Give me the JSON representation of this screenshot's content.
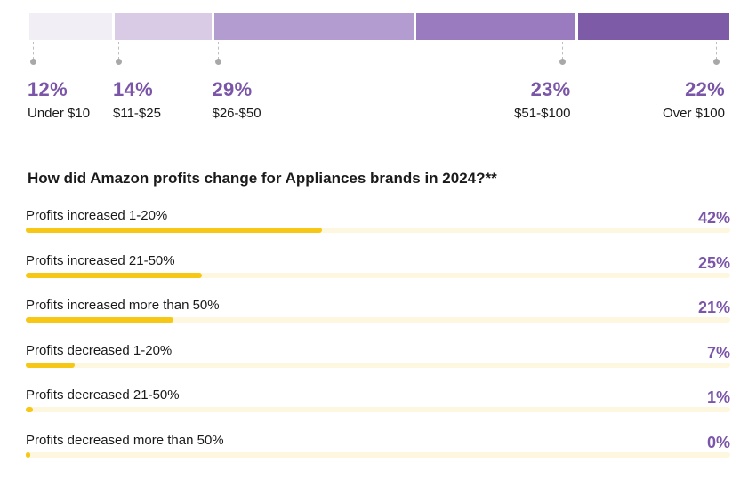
{
  "chart_data": [
    {
      "type": "bar",
      "orientation": "stacked-horizontal",
      "title": "",
      "categories": [
        "Under $10",
        "$11-$25",
        "$26-$50",
        "$51-$100",
        "Over $100"
      ],
      "values": [
        12,
        14,
        29,
        23,
        22
      ],
      "value_labels": [
        "12%",
        "14%",
        "29%",
        "23%",
        "22%"
      ],
      "colors": [
        "#f1eef6",
        "#d9cbe6",
        "#b39dd0",
        "#9a7bbf",
        "#7d5ba6"
      ]
    },
    {
      "type": "bar",
      "orientation": "horizontal",
      "title": "How did Amazon profits change for Appliances brands in 2024?**",
      "categories": [
        "Profits increased 1-20%",
        "Profits increased 21-50%",
        "Profits increased more than 50%",
        "Profits decreased 1-20%",
        "Profits decreased 21-50%",
        "Profits decreased more than 50%"
      ],
      "values": [
        42,
        25,
        21,
        7,
        1,
        0
      ],
      "value_labels": [
        "42%",
        "25%",
        "21%",
        "7%",
        "1%",
        "0%"
      ],
      "xlim": [
        0,
        100
      ],
      "bar_color": "#f7c715",
      "track_color": "#fdf7df"
    }
  ]
}
